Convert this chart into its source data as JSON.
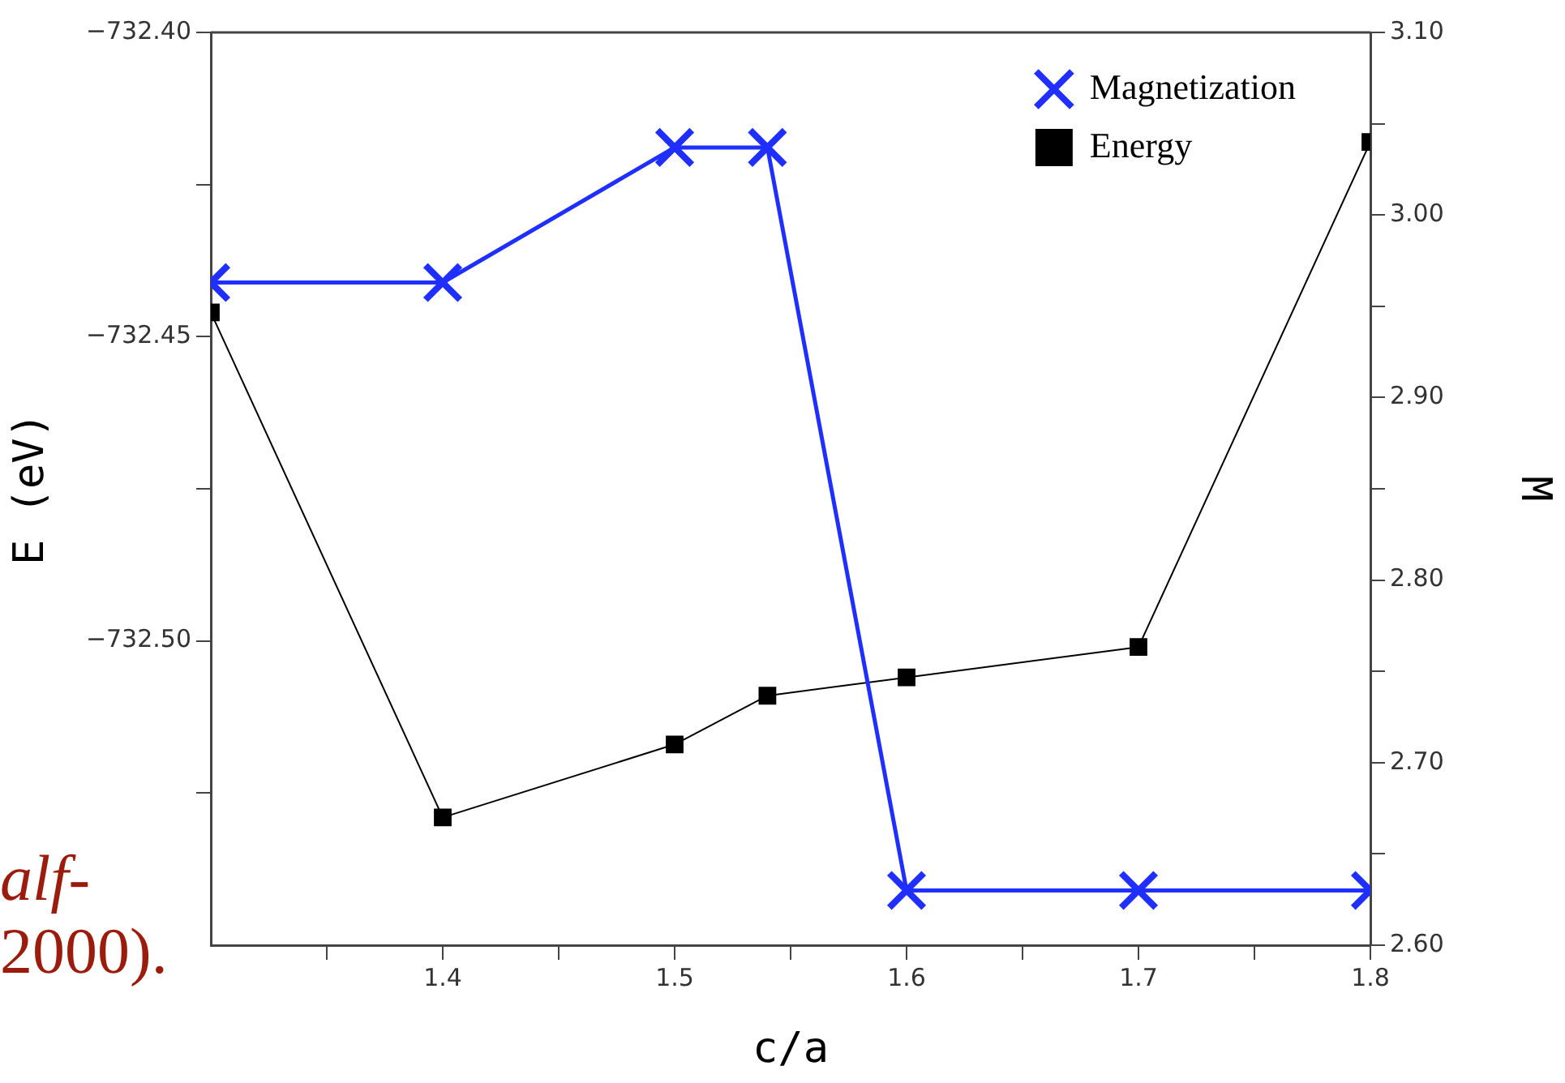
{
  "chart_data": {
    "type": "line",
    "xlabel": "c/a",
    "ylabel": "E (eV)",
    "y2label": "M",
    "x": [
      1.3,
      1.4,
      1.5,
      1.54,
      1.6,
      1.7,
      1.8
    ],
    "series": [
      {
        "name": "Magnetization",
        "color": "#1f2fff",
        "axis": "y2",
        "marker": "cross",
        "values": [
          2.963,
          2.963,
          3.037,
          3.037,
          2.63,
          2.63,
          2.63
        ]
      },
      {
        "name": "Energy",
        "color": "#000000",
        "axis": "y",
        "marker": "square",
        "values": [
          -732.446,
          -732.529,
          -732.517,
          -732.509,
          -732.506,
          -732.501,
          -732.418
        ]
      }
    ],
    "xlim": [
      1.3,
      1.8
    ],
    "xticks": [
      {
        "value": 1.35,
        "label": null
      },
      1.4,
      {
        "value": 1.45,
        "label": null
      },
      1.5,
      {
        "value": 1.55,
        "label": null
      },
      1.6,
      {
        "value": 1.65,
        "label": null
      },
      1.7,
      {
        "value": 1.75,
        "label": null
      },
      1.8
    ],
    "ylim": [
      -732.55,
      -732.4
    ],
    "yticks": [
      {
        "value": -732.525,
        "label": null
      },
      {
        "value": -732.5,
        "label": "−732.50"
      },
      {
        "value": -732.475,
        "label": null
      },
      {
        "value": -732.45,
        "label": "−732.45"
      },
      {
        "value": -732.425,
        "label": null
      },
      {
        "value": -732.4,
        "label": "−732.40"
      }
    ],
    "y2lim": [
      2.6,
      3.1
    ],
    "y2ticks": [
      {
        "value": 2.6,
        "label": "2.60"
      },
      {
        "value": 2.65,
        "label": null
      },
      {
        "value": 2.7,
        "label": "2.70"
      },
      {
        "value": 2.75,
        "label": null
      },
      {
        "value": 2.8,
        "label": "2.80"
      },
      {
        "value": 2.85,
        "label": null
      },
      {
        "value": 2.9,
        "label": "2.90"
      },
      {
        "value": 2.95,
        "label": null
      },
      {
        "value": 3.0,
        "label": "3.00"
      },
      {
        "value": 3.05,
        "label": null
      },
      {
        "value": 3.1,
        "label": "3.10"
      }
    ],
    "grid": false,
    "legend": "top right",
    "line_style": "solid",
    "annotations": [
      "alf-",
      "2000)."
    ]
  }
}
